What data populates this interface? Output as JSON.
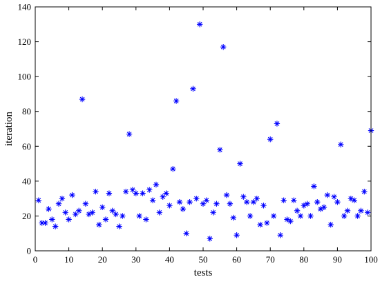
{
  "chart_data": {
    "type": "scatter",
    "title": "",
    "xlabel": "tests",
    "ylabel": "iteration",
    "xlim": [
      0,
      100
    ],
    "ylim": [
      0,
      140
    ],
    "xticks": [
      0,
      10,
      20,
      30,
      40,
      50,
      60,
      70,
      80,
      90,
      100
    ],
    "yticks": [
      0,
      20,
      40,
      60,
      80,
      100,
      120,
      140
    ],
    "grid": false,
    "marker": "plus-star",
    "marker_color": "#0000ff",
    "points": [
      [
        1,
        29
      ],
      [
        2,
        16
      ],
      [
        3,
        16
      ],
      [
        4,
        24
      ],
      [
        5,
        18
      ],
      [
        6,
        14
      ],
      [
        7,
        27
      ],
      [
        8,
        30
      ],
      [
        9,
        22
      ],
      [
        10,
        18
      ],
      [
        11,
        32
      ],
      [
        12,
        21
      ],
      [
        13,
        23
      ],
      [
        14,
        87
      ],
      [
        15,
        27
      ],
      [
        16,
        21
      ],
      [
        17,
        22
      ],
      [
        18,
        34
      ],
      [
        19,
        15
      ],
      [
        20,
        25
      ],
      [
        21,
        18
      ],
      [
        22,
        33
      ],
      [
        23,
        23
      ],
      [
        24,
        21
      ],
      [
        25,
        14
      ],
      [
        26,
        20
      ],
      [
        27,
        34
      ],
      [
        28,
        67
      ],
      [
        29,
        35
      ],
      [
        30,
        33
      ],
      [
        31,
        20
      ],
      [
        32,
        33
      ],
      [
        33,
        18
      ],
      [
        34,
        35
      ],
      [
        35,
        29
      ],
      [
        36,
        38
      ],
      [
        37,
        22
      ],
      [
        38,
        31
      ],
      [
        39,
        33
      ],
      [
        40,
        26
      ],
      [
        41,
        47
      ],
      [
        42,
        86
      ],
      [
        43,
        28
      ],
      [
        44,
        24
      ],
      [
        45,
        10
      ],
      [
        46,
        28
      ],
      [
        47,
        93
      ],
      [
        48,
        30
      ],
      [
        49,
        130
      ],
      [
        50,
        27
      ],
      [
        51,
        29
      ],
      [
        52,
        7
      ],
      [
        53,
        22
      ],
      [
        54,
        27
      ],
      [
        55,
        58
      ],
      [
        56,
        117
      ],
      [
        57,
        32
      ],
      [
        58,
        27
      ],
      [
        59,
        19
      ],
      [
        60,
        9
      ],
      [
        61,
        50
      ],
      [
        62,
        31
      ],
      [
        63,
        28
      ],
      [
        64,
        20
      ],
      [
        65,
        28
      ],
      [
        66,
        30
      ],
      [
        67,
        15
      ],
      [
        68,
        26
      ],
      [
        69,
        16
      ],
      [
        70,
        64
      ],
      [
        71,
        20
      ],
      [
        72,
        73
      ],
      [
        73,
        9
      ],
      [
        74,
        29
      ],
      [
        75,
        18
      ],
      [
        76,
        17
      ],
      [
        77,
        29
      ],
      [
        78,
        23
      ],
      [
        79,
        20
      ],
      [
        80,
        26
      ],
      [
        81,
        27
      ],
      [
        82,
        20
      ],
      [
        83,
        37
      ],
      [
        84,
        28
      ],
      [
        85,
        24
      ],
      [
        86,
        25
      ],
      [
        87,
        32
      ],
      [
        88,
        15
      ],
      [
        89,
        31
      ],
      [
        90,
        28
      ],
      [
        91,
        61
      ],
      [
        92,
        20
      ],
      [
        93,
        23
      ],
      [
        94,
        30
      ],
      [
        95,
        29
      ],
      [
        96,
        20
      ],
      [
        97,
        23
      ],
      [
        98,
        34
      ],
      [
        99,
        22
      ],
      [
        100,
        69
      ]
    ]
  }
}
